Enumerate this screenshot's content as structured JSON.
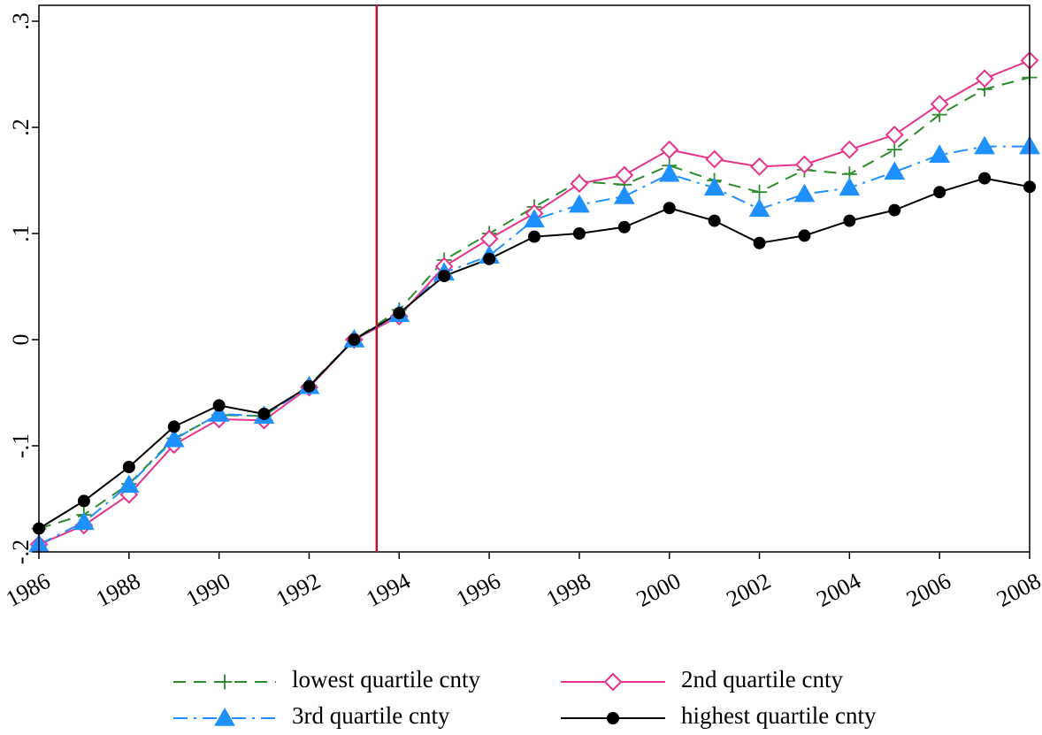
{
  "chart_data": {
    "type": "line",
    "title": "",
    "xlabel": "",
    "ylabel": "",
    "x": [
      1986,
      1987,
      1988,
      1989,
      1990,
      1991,
      1992,
      1993,
      1994,
      1995,
      1996,
      1997,
      1998,
      1999,
      2000,
      2001,
      2002,
      2003,
      2004,
      2005,
      2006,
      2007,
      2008
    ],
    "xlim": [
      1986,
      2008
    ],
    "ylim": [
      -0.2,
      0.3
    ],
    "x_ticks": [
      {
        "value": 1986,
        "label": "1986"
      },
      {
        "value": 1988,
        "label": "1988"
      },
      {
        "value": 1990,
        "label": "1990"
      },
      {
        "value": 1992,
        "label": "1992"
      },
      {
        "value": 1994,
        "label": "1994"
      },
      {
        "value": 1996,
        "label": "1996"
      },
      {
        "value": 1998,
        "label": "1998"
      },
      {
        "value": 2000,
        "label": "2000"
      },
      {
        "value": 2002,
        "label": "2002"
      },
      {
        "value": 2004,
        "label": "2004"
      },
      {
        "value": 2006,
        "label": "2006"
      },
      {
        "value": 2008,
        "label": "2008"
      }
    ],
    "y_ticks": [
      {
        "value": -0.2,
        "label": "-.2"
      },
      {
        "value": -0.1,
        "label": "-.1"
      },
      {
        "value": 0,
        "label": "0"
      },
      {
        "value": 0.1,
        "label": ".1"
      },
      {
        "value": 0.2,
        "label": ".2"
      },
      {
        "value": 0.3,
        "label": ".3"
      }
    ],
    "vertical_line": {
      "x": 1993.5,
      "color": "#c8102e"
    },
    "grid": false,
    "legend_position": "bottom",
    "series": [
      {
        "name": "lowest quartile cnty",
        "color": "#2e8b2e",
        "line_style": "dashed",
        "marker": "plus",
        "values": [
          -0.178,
          -0.165,
          -0.136,
          -0.093,
          -0.071,
          -0.072,
          -0.043,
          0.0,
          0.028,
          0.075,
          0.1,
          0.125,
          0.149,
          0.146,
          0.164,
          0.15,
          0.139,
          0.16,
          0.156,
          0.179,
          0.212,
          0.236,
          0.247
        ]
      },
      {
        "name": "2nd quartile cnty",
        "color": "#e8338a",
        "line_style": "solid",
        "marker": "diamond-open",
        "values": [
          -0.193,
          -0.175,
          -0.146,
          -0.099,
          -0.075,
          -0.076,
          -0.045,
          0.0,
          0.022,
          0.069,
          0.095,
          0.119,
          0.147,
          0.155,
          0.179,
          0.17,
          0.163,
          0.165,
          0.179,
          0.193,
          0.222,
          0.246,
          0.263
        ]
      },
      {
        "name": "3rd quartile cnty",
        "color": "#1e90ff",
        "line_style": "dashdot",
        "marker": "triangle",
        "values": [
          -0.193,
          -0.172,
          -0.137,
          -0.094,
          -0.07,
          -0.072,
          -0.044,
          0.0,
          0.024,
          0.063,
          0.079,
          0.113,
          0.127,
          0.135,
          0.156,
          0.143,
          0.123,
          0.137,
          0.143,
          0.158,
          0.174,
          0.182,
          0.182
        ]
      },
      {
        "name": "highest quartile cnty",
        "color": "#000000",
        "line_style": "solid",
        "marker": "circle",
        "values": [
          -0.178,
          -0.152,
          -0.12,
          -0.082,
          -0.062,
          -0.07,
          -0.044,
          0.0,
          0.025,
          0.06,
          0.076,
          0.097,
          0.1,
          0.106,
          0.124,
          0.112,
          0.091,
          0.098,
          0.112,
          0.122,
          0.139,
          0.152,
          0.144
        ]
      }
    ]
  }
}
